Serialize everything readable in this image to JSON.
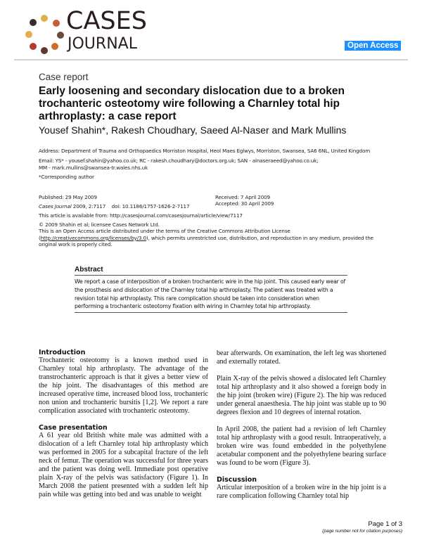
{
  "header": {
    "logo_text": [
      "CASES",
      "JOURNAL"
    ],
    "badge": "Open Access",
    "badge_color": "#1e8fff"
  },
  "article": {
    "type": "Case report",
    "title": "Early loosening and secondary dislocation due to a broken trochanteric osteotomy wire following a Charnley total hip arthroplasty: a case report",
    "authors": "Yousef Shahin*, Rakesh Choudhary, Saeed Al-Naser and Mark Mullins",
    "address": "Address: Department of Trauma and Orthopaedics Morriston Hospital, Heol Maes Eglwys, Morriston, Swansea, SA6 6NL, United Kingdom",
    "email_line1": "Email: YS* - yousef.shahin@yahoo.co.uk; RC - rakesh.choudhary@doctors.org.uk; SAN - alnaseraeed@yahoo.co.uk;",
    "email_line2": "MM - mark.mullins@swansea-tr.wales.nhs.uk",
    "corresponding": "*Corresponding author",
    "published": "Published: 29 May 2009",
    "citation_journal": "Cases Journal",
    "citation": " 2009, 2:7117    doi: 10.1186/1757-1626-2-7117",
    "received": "Received: 7 April 2009",
    "accepted": "Accepted: 30 April 2009",
    "available": "This article is available from: http://casesjournal.com/casesjournal/article/view/7117",
    "copyright": "© 2009 Shahin et al; licensee Cases Network Ltd.",
    "license_pre": "This is an Open Access article distributed under the terms of the Creative Commons Attribution License (",
    "license_link": "http://creativecommons.org/licenses/by/3.0",
    "license_post": "), which permits unrestricted use, distribution, and reproduction in any medium, provided the original work is properly cited."
  },
  "abstract": {
    "heading": "Abstract",
    "text": "We report a case of interposition of a broken trochanteric wire in the hip joint. This caused early wear of the prosthesis and dislocation of the Charnley total hip arthroplasty. The patient was treated with a revision total hip arthroplasty. This rare complication should be taken into consideration when performing a trochanteric osteotomy fixation with wiring in Charnley total hip arthroplasty."
  },
  "body": {
    "intro_heading": "Introduction",
    "intro": "Trochanteric osteotomy is a known method used in Charnley total hip arthroplasty. The advantage of the transtrochanteric approach is that it gives a better view of the hip joint. The disadvantages of this method are increased operative time, increased blood loss, trochanteric non union and trochanteric bursitis [1,2]. We report a rare complication associated with trochanteric osteotomy.",
    "case_heading": "Case presentation",
    "case1": "A 61 year old British white male was admitted with a dislocation of a left Charnley total hip arthroplasty which was performed in 2005 for a subcapital fracture of the left neck of femur. The operation was successful for three years and the patient was doing well. Immediate post operative plain X-ray of the pelvis was satisfactory (Figure 1). In March 2008 the patient presented with a sudden left hip pain while was getting into bed and was unable to weight",
    "case1_cont": "bear afterwards. On examination, the left leg was shortened and externally rotated.",
    "case2": "Plain X-ray of the pelvis showed a dislocated left Charnley total hip arthroplasty and it also showed a foreign body in the hip joint (broken wire) (Figure 2). The hip was reduced under general anaesthesia. The hip joint was stable up to 90 degrees flexion and 10 degrees of internal rotation.",
    "case3": "In April 2008, the patient had a revision of left Charnley total hip arthroplasty with a good result. Intraoperatively, a broken wire was found embedded in the polyethylene acetabular component and the polyethylene bearing surface was found to be worn (Figure 3).",
    "disc_heading": "Discussion",
    "disc": "Articular interposition of a broken wire in the hip joint is a rare complication following Charnley total hip"
  },
  "footer": {
    "page": "Page 1 of 3",
    "note": "(page number not for citation purposes)"
  }
}
